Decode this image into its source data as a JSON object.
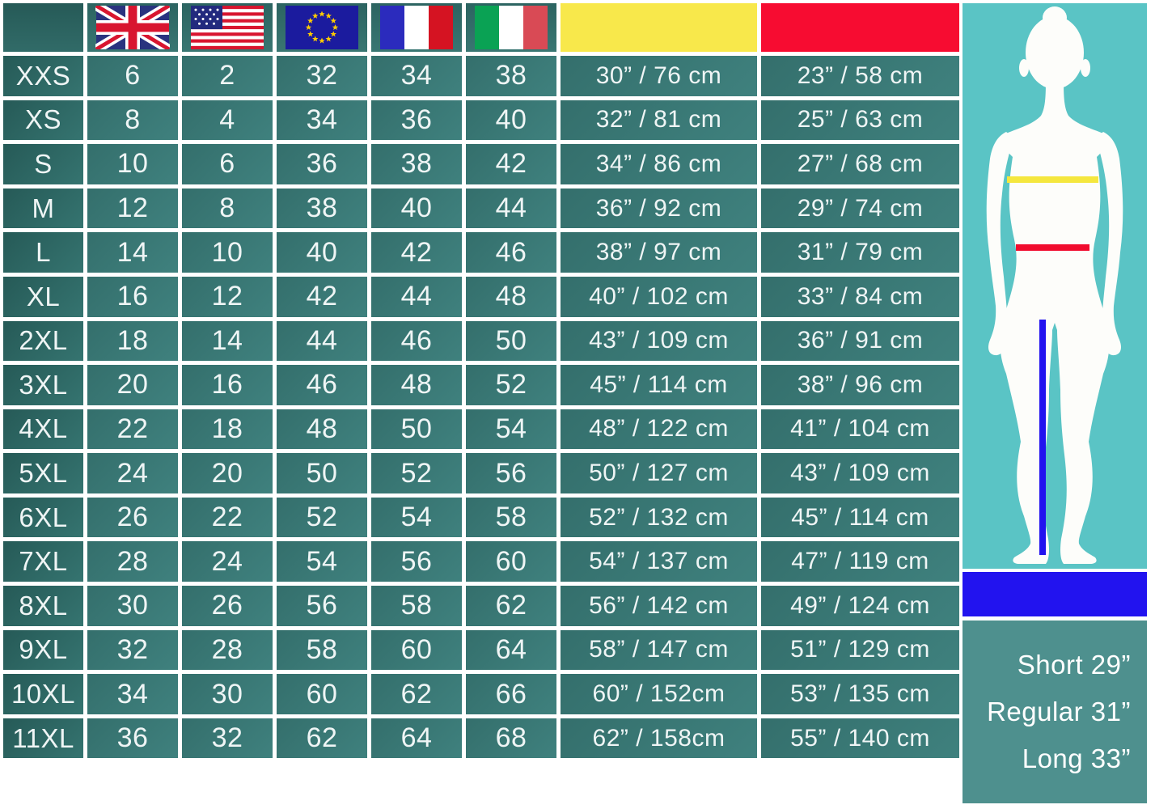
{
  "palette": {
    "cell_teal": "#3a7a77",
    "label_teal_dark": "#2c6360",
    "grid_background": "#ffffff",
    "bust_swatch_yellow": "#f8e84b",
    "waist_swatch_red": "#f70c31",
    "figure_panel_turquoise": "#5ac4c5",
    "inseam_band_blue": "#2213ef",
    "legend_panel_teal": "#4e908e",
    "silhouette_white": "#fdfdfa",
    "table_text": "#eff5f5"
  },
  "chart_data": {
    "type": "table",
    "header": {
      "size_column_label": "",
      "flag_columns": [
        "United Kingdom",
        "United States",
        "European Union",
        "France",
        "Italy"
      ],
      "bust_column_swatch": "#f8e84b",
      "waist_column_swatch": "#f70c31"
    },
    "rows": [
      {
        "size": "XXS",
        "uk": "6",
        "us": "2",
        "eu": "32",
        "fr": "34",
        "it": "38",
        "bust": "30” / 76 cm",
        "waist": "23” / 58 cm"
      },
      {
        "size": "XS",
        "uk": "8",
        "us": "4",
        "eu": "34",
        "fr": "36",
        "it": "40",
        "bust": "32” / 81 cm",
        "waist": "25” / 63 cm"
      },
      {
        "size": "S",
        "uk": "10",
        "us": "6",
        "eu": "36",
        "fr": "38",
        "it": "42",
        "bust": "34” / 86 cm",
        "waist": "27” / 68 cm"
      },
      {
        "size": "M",
        "uk": "12",
        "us": "8",
        "eu": "38",
        "fr": "40",
        "it": "44",
        "bust": "36” / 92 cm",
        "waist": "29” / 74 cm"
      },
      {
        "size": "L",
        "uk": "14",
        "us": "10",
        "eu": "40",
        "fr": "42",
        "it": "46",
        "bust": "38” / 97 cm",
        "waist": "31” / 79 cm"
      },
      {
        "size": "XL",
        "uk": "16",
        "us": "12",
        "eu": "42",
        "fr": "44",
        "it": "48",
        "bust": "40” / 102 cm",
        "waist": "33” / 84 cm"
      },
      {
        "size": "2XL",
        "uk": "18",
        "us": "14",
        "eu": "44",
        "fr": "46",
        "it": "50",
        "bust": "43” / 109 cm",
        "waist": "36” / 91 cm"
      },
      {
        "size": "3XL",
        "uk": "20",
        "us": "16",
        "eu": "46",
        "fr": "48",
        "it": "52",
        "bust": "45” / 114 cm",
        "waist": "38” / 96 cm"
      },
      {
        "size": "4XL",
        "uk": "22",
        "us": "18",
        "eu": "48",
        "fr": "50",
        "it": "54",
        "bust": "48” / 122 cm",
        "waist": "41” / 104 cm"
      },
      {
        "size": "5XL",
        "uk": "24",
        "us": "20",
        "eu": "50",
        "fr": "52",
        "it": "56",
        "bust": "50” / 127 cm",
        "waist": "43” / 109 cm"
      },
      {
        "size": "6XL",
        "uk": "26",
        "us": "22",
        "eu": "52",
        "fr": "54",
        "it": "58",
        "bust": "52” / 132 cm",
        "waist": "45” / 114 cm"
      },
      {
        "size": "7XL",
        "uk": "28",
        "us": "24",
        "eu": "54",
        "fr": "56",
        "it": "60",
        "bust": "54” / 137 cm",
        "waist": "47” / 119 cm"
      },
      {
        "size": "8XL",
        "uk": "30",
        "us": "26",
        "eu": "56",
        "fr": "58",
        "it": "62",
        "bust": "56” / 142 cm",
        "waist": "49” / 124 cm"
      },
      {
        "size": "9XL",
        "uk": "32",
        "us": "28",
        "eu": "58",
        "fr": "60",
        "it": "64",
        "bust": "58” / 147 cm",
        "waist": "51” / 129 cm"
      },
      {
        "size": "10XL",
        "uk": "34",
        "us": "30",
        "eu": "60",
        "fr": "62",
        "it": "66",
        "bust": "60” / 152cm",
        "waist": "53” / 135 cm"
      },
      {
        "size": "11XL",
        "uk": "36",
        "us": "32",
        "eu": "62",
        "fr": "64",
        "it": "68",
        "bust": "62” / 158cm",
        "waist": "55” / 140 cm"
      }
    ]
  },
  "figure": {
    "bust_line_color": "#f5e73e",
    "waist_line_color": "#f10c2e",
    "inseam_line_color": "#2213ef"
  },
  "legend": {
    "lines": [
      "Short 29”",
      "Regular 31”",
      "Long 33”"
    ]
  }
}
